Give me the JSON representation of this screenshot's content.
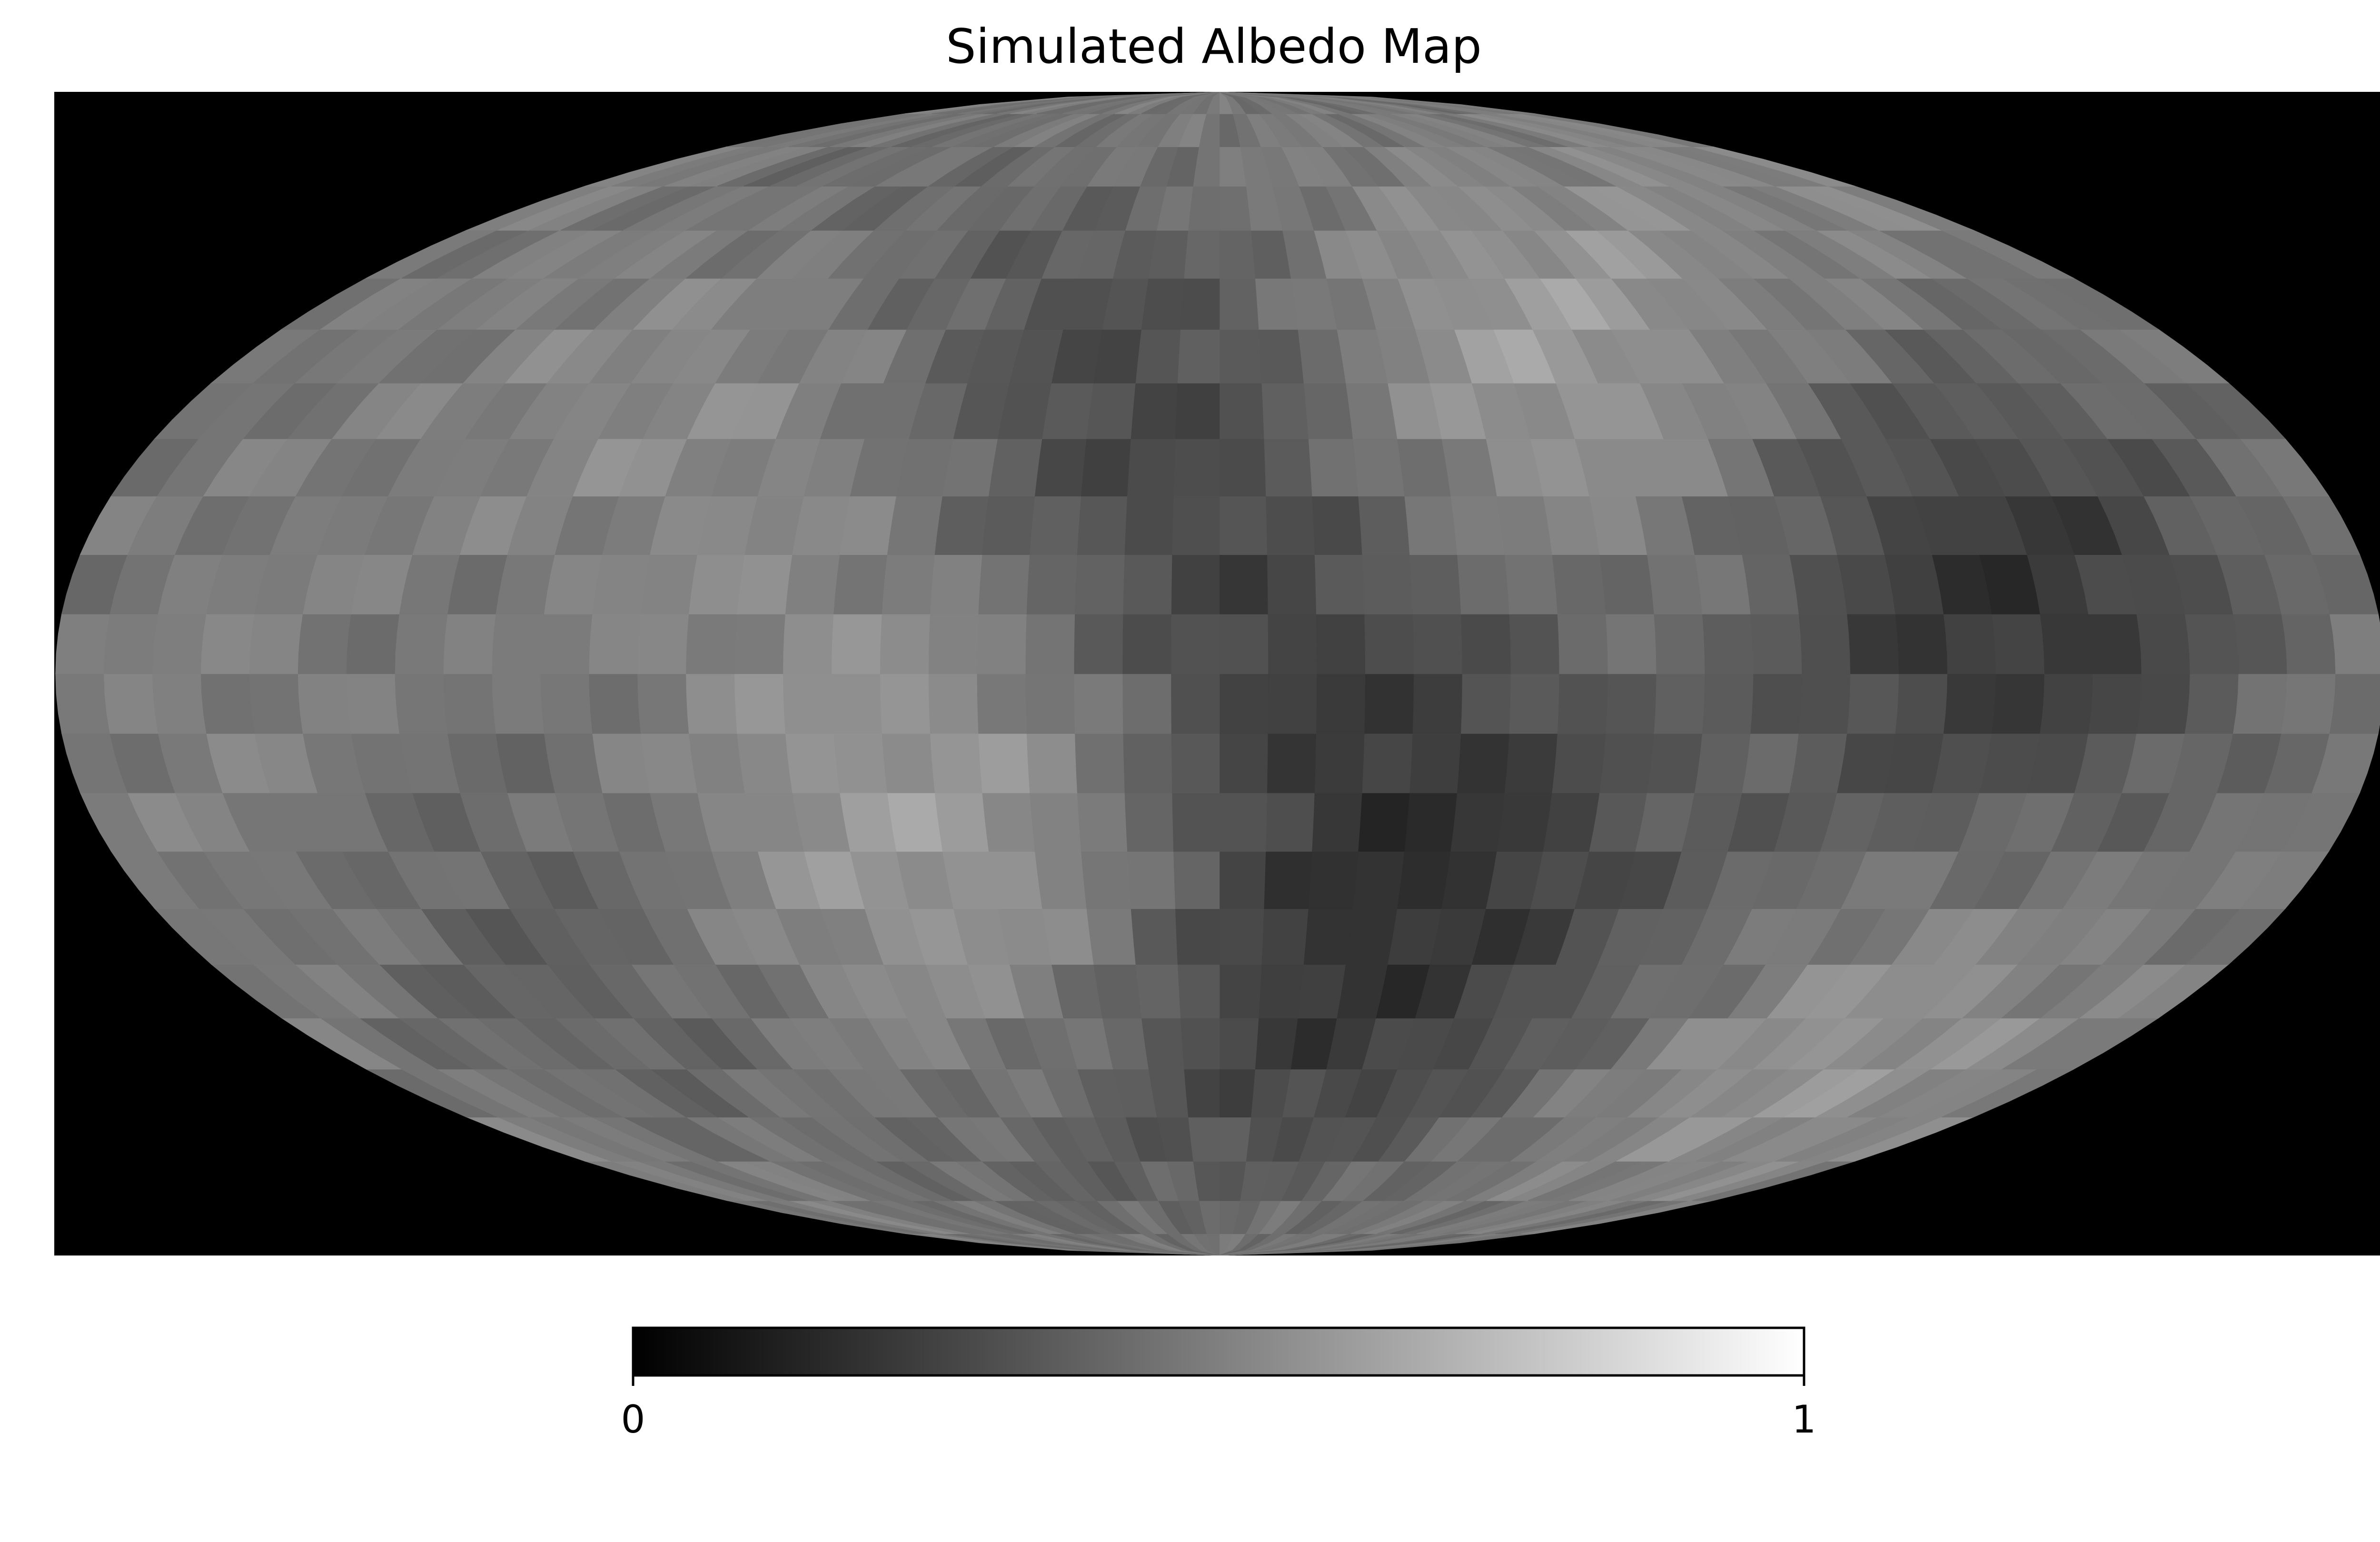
{
  "chart_data": {
    "type": "heatmap",
    "title": "Simulated Albedo Map",
    "projection": "mollweide",
    "colormap": "greys",
    "grid": false,
    "value_range": [
      0,
      1
    ],
    "colorbar": {
      "orientation": "horizontal",
      "placement": "bottom",
      "ticks": [
        0,
        1
      ],
      "tick_labels": [
        "0",
        "1"
      ]
    },
    "background_color": "#000000",
    "lon_bins": 48,
    "lat_bins": 24,
    "features": [
      {
        "lon": -10,
        "lat": 55,
        "radius": 34,
        "albedo": -0.32
      },
      {
        "lon": 45,
        "lat": 52,
        "radius": 30,
        "albedo": 0.3
      },
      {
        "lon": -75,
        "lat": 48,
        "radius": 28,
        "albedo": 0.14
      },
      {
        "lon": 35,
        "lat": -20,
        "radius": 26,
        "albedo": -0.26
      },
      {
        "lon": -45,
        "lat": -18,
        "radius": 24,
        "albedo": 0.16
      },
      {
        "lon": 110,
        "lat": 5,
        "radius": 22,
        "albedo": -0.2
      },
      {
        "lon": 140,
        "lat": 10,
        "radius": 20,
        "albedo": -0.14
      },
      {
        "lon": -120,
        "lat": -35,
        "radius": 20,
        "albedo": -0.1
      },
      {
        "lon": 120,
        "lat": -50,
        "radius": 22,
        "albedo": 0.14
      },
      {
        "lon": 10,
        "lat": -55,
        "radius": 20,
        "albedo": -0.12
      },
      {
        "lon": -150,
        "lat": -10,
        "radius": 22,
        "albedo": 0.05
      },
      {
        "lon": 5,
        "lat": 5,
        "radius": 14,
        "albedo": -0.06
      }
    ]
  }
}
